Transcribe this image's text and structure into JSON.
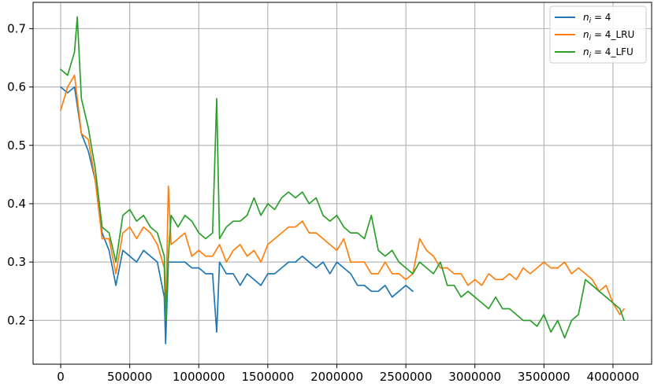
{
  "chart_data": {
    "type": "line",
    "title": "",
    "xlabel": "",
    "ylabel": "",
    "xlim": [
      -200000,
      4280000
    ],
    "ylim": [
      0.125,
      0.745
    ],
    "grid": true,
    "legend_position": "top-right",
    "x_ticks": [
      0,
      500000,
      1000000,
      1500000,
      2000000,
      2500000,
      3000000,
      3500000,
      4000000
    ],
    "x_tick_labels": [
      "0",
      "500000",
      "1000000",
      "1500000",
      "2000000",
      "2500000",
      "3000000",
      "3500000",
      "4000000"
    ],
    "y_ticks": [
      0.2,
      0.3,
      0.4,
      0.5,
      0.6,
      0.7
    ],
    "y_tick_labels": [
      "0.2",
      "0.3",
      "0.4",
      "0.5",
      "0.6",
      "0.7"
    ],
    "series": [
      {
        "name": "n_i = 4",
        "legend_var": "n",
        "legend_sub": "i",
        "legend_rest": " = 4",
        "color": "#1f77b4",
        "x": [
          0,
          50000,
          100000,
          150000,
          200000,
          250000,
          300000,
          350000,
          400000,
          450000,
          500000,
          550000,
          600000,
          650000,
          700000,
          750000,
          760000,
          780000,
          800000,
          850000,
          900000,
          950000,
          1000000,
          1050000,
          1100000,
          1130000,
          1150000,
          1200000,
          1250000,
          1300000,
          1350000,
          1400000,
          1450000,
          1500000,
          1550000,
          1600000,
          1650000,
          1700000,
          1750000,
          1800000,
          1850000,
          1900000,
          1950000,
          2000000,
          2050000,
          2100000,
          2150000,
          2200000,
          2250000,
          2300000,
          2350000,
          2400000,
          2450000,
          2500000,
          2550000
        ],
        "y": [
          0.6,
          0.59,
          0.6,
          0.52,
          0.49,
          0.44,
          0.35,
          0.32,
          0.26,
          0.32,
          0.31,
          0.3,
          0.32,
          0.31,
          0.3,
          0.24,
          0.16,
          0.3,
          0.3,
          0.3,
          0.3,
          0.29,
          0.29,
          0.28,
          0.28,
          0.18,
          0.3,
          0.28,
          0.28,
          0.26,
          0.28,
          0.27,
          0.26,
          0.28,
          0.28,
          0.29,
          0.3,
          0.3,
          0.31,
          0.3,
          0.29,
          0.3,
          0.28,
          0.3,
          0.29,
          0.28,
          0.26,
          0.26,
          0.25,
          0.25,
          0.26,
          0.24,
          0.25,
          0.26,
          0.25
        ]
      },
      {
        "name": "n_i = 4_LRU",
        "legend_var": "n",
        "legend_sub": "i",
        "legend_rest": " = 4_LRU",
        "color": "#ff7f0e",
        "x": [
          0,
          50000,
          100000,
          150000,
          200000,
          250000,
          300000,
          350000,
          400000,
          450000,
          500000,
          550000,
          600000,
          650000,
          700000,
          750000,
          760000,
          780000,
          800000,
          850000,
          900000,
          950000,
          1000000,
          1050000,
          1100000,
          1150000,
          1200000,
          1250000,
          1300000,
          1350000,
          1400000,
          1450000,
          1500000,
          1550000,
          1600000,
          1650000,
          1700000,
          1750000,
          1800000,
          1850000,
          1900000,
          1950000,
          2000000,
          2050000,
          2100000,
          2150000,
          2200000,
          2250000,
          2300000,
          2350000,
          2400000,
          2450000,
          2500000,
          2550000,
          2600000,
          2650000,
          2700000,
          2750000,
          2800000,
          2850000,
          2900000,
          2950000,
          3000000,
          3050000,
          3100000,
          3150000,
          3200000,
          3250000,
          3300000,
          3350000,
          3400000,
          3450000,
          3500000,
          3550000,
          3600000,
          3650000,
          3700000,
          3750000,
          3800000,
          3850000,
          3900000,
          3950000,
          4000000,
          4050000,
          4080000
        ],
        "y": [
          0.56,
          0.6,
          0.62,
          0.52,
          0.51,
          0.44,
          0.34,
          0.34,
          0.28,
          0.35,
          0.36,
          0.34,
          0.36,
          0.35,
          0.33,
          0.29,
          0.2,
          0.43,
          0.33,
          0.34,
          0.35,
          0.31,
          0.32,
          0.31,
          0.31,
          0.33,
          0.3,
          0.32,
          0.33,
          0.31,
          0.32,
          0.3,
          0.33,
          0.34,
          0.35,
          0.36,
          0.36,
          0.37,
          0.35,
          0.35,
          0.34,
          0.33,
          0.32,
          0.34,
          0.3,
          0.3,
          0.3,
          0.28,
          0.28,
          0.3,
          0.28,
          0.28,
          0.27,
          0.28,
          0.34,
          0.32,
          0.31,
          0.29,
          0.29,
          0.28,
          0.28,
          0.26,
          0.27,
          0.26,
          0.28,
          0.27,
          0.27,
          0.28,
          0.27,
          0.29,
          0.28,
          0.29,
          0.3,
          0.29,
          0.29,
          0.3,
          0.28,
          0.29,
          0.28,
          0.27,
          0.25,
          0.26,
          0.23,
          0.21,
          0.22
        ]
      },
      {
        "name": "n_i = 4_LFU",
        "legend_var": "n",
        "legend_sub": "i",
        "legend_rest": " = 4_LFU",
        "color": "#2ca02c",
        "x": [
          0,
          50000,
          100000,
          120000,
          150000,
          200000,
          250000,
          300000,
          350000,
          400000,
          450000,
          500000,
          550000,
          600000,
          650000,
          700000,
          750000,
          760000,
          780000,
          800000,
          850000,
          900000,
          950000,
          1000000,
          1050000,
          1100000,
          1130000,
          1150000,
          1200000,
          1250000,
          1300000,
          1350000,
          1400000,
          1450000,
          1500000,
          1550000,
          1600000,
          1650000,
          1700000,
          1750000,
          1800000,
          1850000,
          1900000,
          1950000,
          2000000,
          2050000,
          2100000,
          2150000,
          2200000,
          2250000,
          2300000,
          2350000,
          2400000,
          2450000,
          2500000,
          2550000,
          2600000,
          2650000,
          2700000,
          2750000,
          2800000,
          2850000,
          2900000,
          2950000,
          3000000,
          3050000,
          3100000,
          3150000,
          3200000,
          3250000,
          3300000,
          3350000,
          3400000,
          3450000,
          3500000,
          3550000,
          3600000,
          3650000,
          3700000,
          3750000,
          3800000,
          3850000,
          3900000,
          3950000,
          4000000,
          4050000,
          4080000
        ],
        "y": [
          0.63,
          0.62,
          0.66,
          0.72,
          0.58,
          0.53,
          0.46,
          0.36,
          0.35,
          0.3,
          0.38,
          0.39,
          0.37,
          0.38,
          0.36,
          0.35,
          0.31,
          0.2,
          0.31,
          0.38,
          0.36,
          0.38,
          0.37,
          0.35,
          0.34,
          0.35,
          0.58,
          0.34,
          0.36,
          0.37,
          0.37,
          0.38,
          0.41,
          0.38,
          0.4,
          0.39,
          0.41,
          0.42,
          0.41,
          0.42,
          0.4,
          0.41,
          0.38,
          0.37,
          0.38,
          0.36,
          0.35,
          0.35,
          0.34,
          0.38,
          0.32,
          0.31,
          0.32,
          0.3,
          0.29,
          0.28,
          0.3,
          0.29,
          0.28,
          0.3,
          0.26,
          0.26,
          0.24,
          0.25,
          0.24,
          0.23,
          0.22,
          0.24,
          0.22,
          0.22,
          0.21,
          0.2,
          0.2,
          0.19,
          0.21,
          0.18,
          0.2,
          0.17,
          0.2,
          0.21,
          0.27,
          0.26,
          0.25,
          0.24,
          0.23,
          0.22,
          0.2
        ]
      }
    ]
  }
}
